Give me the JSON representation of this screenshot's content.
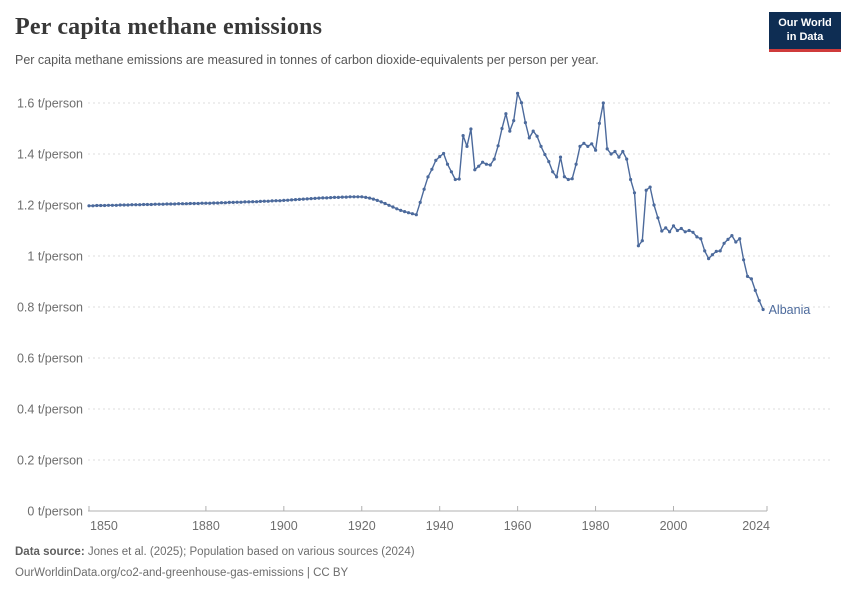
{
  "header": {
    "title": "Per capita methane emissions",
    "subtitle": "Per capita methane emissions are measured in tonnes of carbon dioxide-equivalents per person per year.",
    "logo": {
      "line1": "Our World",
      "line2": "in Data",
      "bg_color": "#0e2d53",
      "accent_color": "#cf3b3b"
    }
  },
  "footer": {
    "source_label": "Data source:",
    "source_text": " Jones et al. (2025); Population based on various sources (2024)",
    "note_text": "OurWorldinData.org/co2-and-greenhouse-gas-emissions | CC BY"
  },
  "chart_data": {
    "type": "line",
    "title": "Per capita methane emissions",
    "unit": "t/person",
    "entity_label": "Albania",
    "line_color": "#4C6A9C",
    "axis_text_color": "#6e6e6e",
    "gridline_color": "#dcdcdc",
    "grid": "horizontal dashed",
    "legend_position": "end-of-line label",
    "xlim": [
      1850,
      2024
    ],
    "ylim": [
      0,
      1.6
    ],
    "x_ticks": [
      1850,
      1880,
      1900,
      1920,
      1940,
      1960,
      1980,
      2000,
      2024
    ],
    "y_ticks": [
      0,
      0.2,
      0.4,
      0.6,
      0.8,
      1,
      1.2,
      1.4,
      1.6
    ],
    "y_tick_label_suffix": " t/person",
    "series": [
      {
        "name": "Albania",
        "start_year": 1850,
        "end_year": 2023,
        "values": [
          1.197,
          1.197,
          1.198,
          1.198,
          1.198,
          1.199,
          1.199,
          1.199,
          1.2,
          1.2,
          1.2,
          1.201,
          1.201,
          1.201,
          1.202,
          1.202,
          1.202,
          1.203,
          1.203,
          1.203,
          1.204,
          1.204,
          1.204,
          1.205,
          1.205,
          1.205,
          1.206,
          1.206,
          1.206,
          1.207,
          1.207,
          1.207,
          1.208,
          1.208,
          1.209,
          1.209,
          1.21,
          1.21,
          1.211,
          1.211,
          1.212,
          1.212,
          1.213,
          1.213,
          1.214,
          1.215,
          1.215,
          1.216,
          1.217,
          1.217,
          1.218,
          1.219,
          1.22,
          1.221,
          1.222,
          1.223,
          1.224,
          1.225,
          1.226,
          1.227,
          1.228,
          1.228,
          1.229,
          1.23,
          1.23,
          1.231,
          1.231,
          1.232,
          1.232,
          1.232,
          1.232,
          1.23,
          1.227,
          1.223,
          1.218,
          1.212,
          1.206,
          1.199,
          1.192,
          1.185,
          1.179,
          1.174,
          1.17,
          1.166,
          1.162,
          1.21,
          1.262,
          1.31,
          1.34,
          1.375,
          1.39,
          1.402,
          1.36,
          1.33,
          1.3,
          1.302,
          1.472,
          1.43,
          1.498,
          1.338,
          1.352,
          1.368,
          1.36,
          1.357,
          1.38,
          1.432,
          1.5,
          1.558,
          1.49,
          1.531,
          1.638,
          1.601,
          1.523,
          1.463,
          1.49,
          1.47,
          1.43,
          1.398,
          1.37,
          1.33,
          1.31,
          1.388,
          1.311,
          1.3,
          1.303,
          1.36,
          1.43,
          1.442,
          1.43,
          1.44,
          1.415,
          1.52,
          1.6,
          1.42,
          1.4,
          1.41,
          1.388,
          1.41,
          1.38,
          1.3,
          1.248,
          1.04,
          1.06,
          1.258,
          1.27,
          1.2,
          1.15,
          1.098,
          1.11,
          1.095,
          1.118,
          1.1,
          1.108,
          1.095,
          1.1,
          1.093,
          1.075,
          1.068,
          1.02,
          0.99,
          1.005,
          1.018,
          1.02,
          1.05,
          1.065,
          1.08,
          1.055,
          1.068,
          0.985,
          0.92,
          0.91,
          0.865,
          0.825,
          0.79
        ]
      }
    ]
  }
}
